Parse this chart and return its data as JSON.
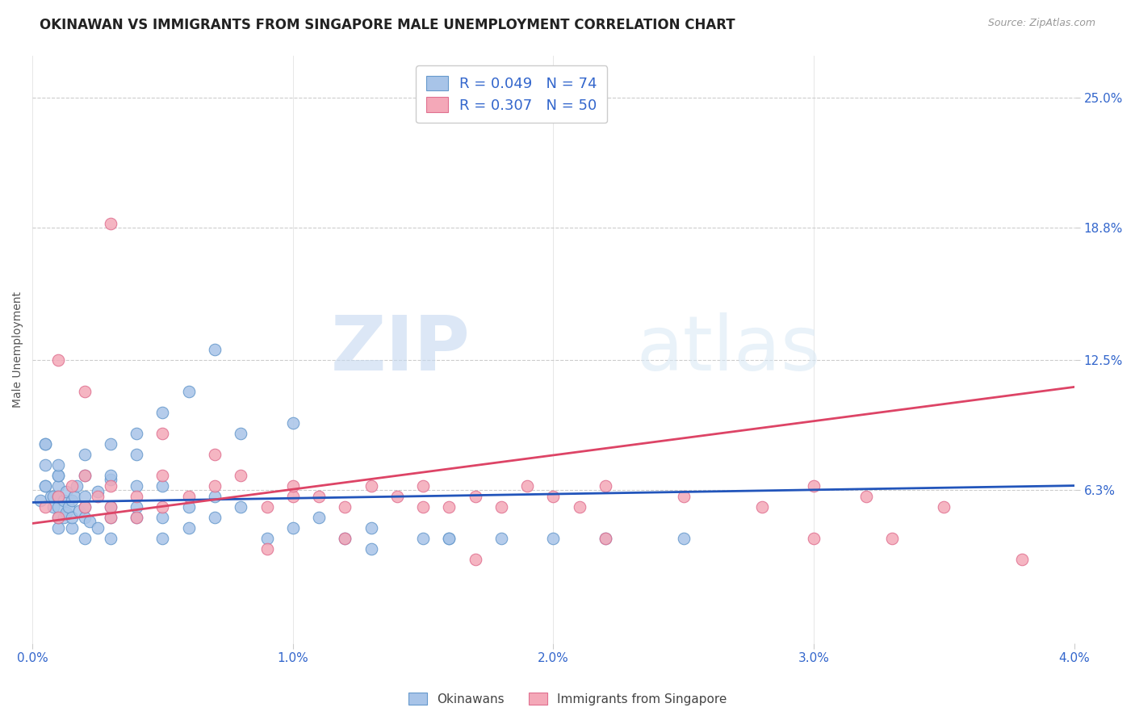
{
  "title": "OKINAWAN VS IMMIGRANTS FROM SINGAPORE MALE UNEMPLOYMENT CORRELATION CHART",
  "source": "Source: ZipAtlas.com",
  "ylabel": "Male Unemployment",
  "xlim": [
    0.0,
    0.04
  ],
  "ylim": [
    -0.01,
    0.27
  ],
  "xticks": [
    0.0,
    0.01,
    0.02,
    0.03,
    0.04
  ],
  "xtick_labels": [
    "0.0%",
    "1.0%",
    "2.0%",
    "3.0%",
    "4.0%"
  ],
  "yticks": [
    0.063,
    0.125,
    0.188,
    0.25
  ],
  "ytick_labels": [
    "6.3%",
    "12.5%",
    "18.8%",
    "25.0%"
  ],
  "blue_color": "#a8c4e8",
  "blue_edge": "#6699cc",
  "pink_color": "#f4a8b8",
  "pink_edge": "#e07090",
  "trend_blue": "#2255bb",
  "trend_pink": "#dd4466",
  "legend_blue_R": "R = 0.049",
  "legend_blue_N": "N = 74",
  "legend_pink_R": "R = 0.307",
  "legend_pink_N": "N = 50",
  "watermark_zip": "ZIP",
  "watermark_atlas": "atlas",
  "title_fontsize": 12,
  "axis_label_fontsize": 10,
  "tick_fontsize": 11,
  "legend_fontsize": 13,
  "blue_scatter_x": [
    0.0003,
    0.0005,
    0.0005,
    0.0005,
    0.0007,
    0.0008,
    0.0008,
    0.001,
    0.001,
    0.001,
    0.001,
    0.001,
    0.001,
    0.0012,
    0.0012,
    0.0013,
    0.0013,
    0.0014,
    0.0015,
    0.0015,
    0.0015,
    0.0016,
    0.0017,
    0.0018,
    0.002,
    0.002,
    0.002,
    0.002,
    0.002,
    0.0022,
    0.0025,
    0.0025,
    0.003,
    0.003,
    0.003,
    0.003,
    0.004,
    0.004,
    0.004,
    0.005,
    0.005,
    0.005,
    0.006,
    0.006,
    0.007,
    0.007,
    0.008,
    0.009,
    0.01,
    0.011,
    0.012,
    0.013,
    0.015,
    0.016,
    0.018,
    0.02,
    0.022,
    0.025,
    0.003,
    0.004,
    0.0005,
    0.0005,
    0.001,
    0.001,
    0.002,
    0.003,
    0.004,
    0.005,
    0.006,
    0.007,
    0.008,
    0.01,
    0.013,
    0.016
  ],
  "blue_scatter_y": [
    0.058,
    0.085,
    0.075,
    0.065,
    0.06,
    0.055,
    0.06,
    0.045,
    0.05,
    0.055,
    0.06,
    0.065,
    0.07,
    0.05,
    0.058,
    0.052,
    0.062,
    0.055,
    0.045,
    0.05,
    0.058,
    0.06,
    0.065,
    0.053,
    0.04,
    0.05,
    0.055,
    0.06,
    0.07,
    0.048,
    0.045,
    0.062,
    0.04,
    0.05,
    0.055,
    0.068,
    0.05,
    0.055,
    0.065,
    0.04,
    0.05,
    0.065,
    0.045,
    0.055,
    0.05,
    0.06,
    0.055,
    0.04,
    0.045,
    0.05,
    0.04,
    0.045,
    0.04,
    0.04,
    0.04,
    0.04,
    0.04,
    0.04,
    0.07,
    0.08,
    0.085,
    0.065,
    0.07,
    0.075,
    0.08,
    0.085,
    0.09,
    0.1,
    0.11,
    0.13,
    0.09,
    0.095,
    0.035,
    0.04
  ],
  "pink_scatter_x": [
    0.0005,
    0.001,
    0.001,
    0.0015,
    0.002,
    0.002,
    0.0025,
    0.003,
    0.003,
    0.003,
    0.004,
    0.004,
    0.005,
    0.005,
    0.006,
    0.007,
    0.008,
    0.009,
    0.01,
    0.01,
    0.011,
    0.012,
    0.013,
    0.014,
    0.015,
    0.015,
    0.016,
    0.017,
    0.018,
    0.019,
    0.02,
    0.021,
    0.022,
    0.025,
    0.028,
    0.03,
    0.032,
    0.035,
    0.001,
    0.002,
    0.003,
    0.005,
    0.007,
    0.009,
    0.012,
    0.017,
    0.022,
    0.03,
    0.033,
    0.038
  ],
  "pink_scatter_y": [
    0.055,
    0.05,
    0.06,
    0.065,
    0.055,
    0.07,
    0.06,
    0.05,
    0.055,
    0.065,
    0.05,
    0.06,
    0.055,
    0.07,
    0.06,
    0.065,
    0.07,
    0.055,
    0.06,
    0.065,
    0.06,
    0.055,
    0.065,
    0.06,
    0.055,
    0.065,
    0.055,
    0.06,
    0.055,
    0.065,
    0.06,
    0.055,
    0.065,
    0.06,
    0.055,
    0.065,
    0.06,
    0.055,
    0.125,
    0.11,
    0.19,
    0.09,
    0.08,
    0.035,
    0.04,
    0.03,
    0.04,
    0.04,
    0.04,
    0.03
  ],
  "blue_trend_x": [
    0.0,
    0.04
  ],
  "blue_trend_y": [
    0.057,
    0.065
  ],
  "pink_trend_x": [
    0.0,
    0.04
  ],
  "pink_trend_y": [
    0.047,
    0.112
  ]
}
